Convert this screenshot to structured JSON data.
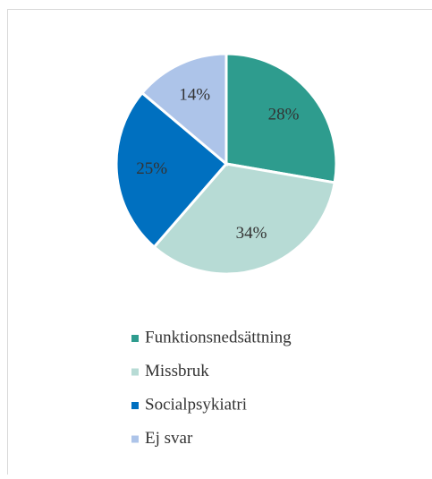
{
  "chart_data": {
    "type": "pie",
    "categories": [
      "Funktionsnedsättning",
      "Missbruk",
      "Socialpsykiatri",
      "Ej svar"
    ],
    "values": [
      28,
      34,
      25,
      14
    ],
    "value_labels": [
      "28%",
      "34%",
      "25%",
      "14%"
    ],
    "colors": [
      "#2e9c8e",
      "#b7dbd5",
      "#0070c0",
      "#adc4e9"
    ],
    "legend": "bottom"
  }
}
